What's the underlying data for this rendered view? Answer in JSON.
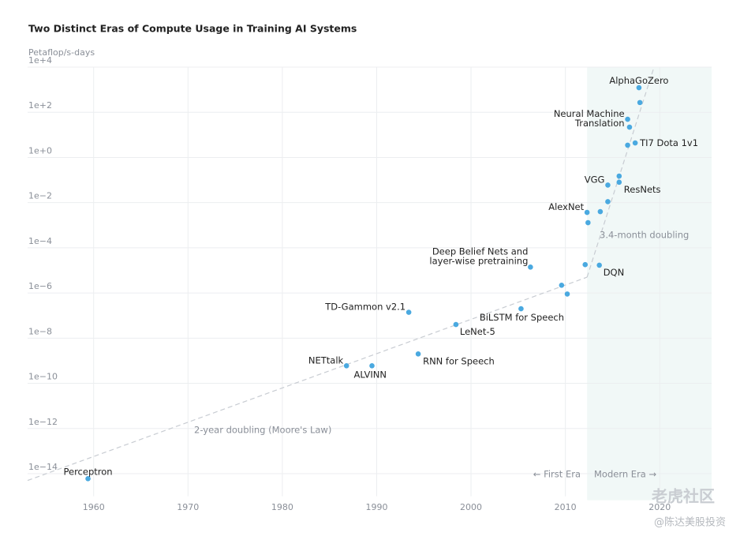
{
  "chart_data": {
    "type": "scatter",
    "title": "Two Distinct Eras of Compute Usage in Training AI Systems",
    "y_label": "Petaflop/s-days",
    "log_y": true,
    "grid": true,
    "xlim": [
      1953,
      2025.5
    ],
    "ylim": [
      1e-15,
      10000
    ],
    "xticks": [
      1960,
      1970,
      1980,
      1990,
      2000,
      2010,
      2020
    ],
    "yticks": [
      {
        "value": 1e-14,
        "label": "1e−14"
      },
      {
        "value": 1e-12,
        "label": "1e−12"
      },
      {
        "value": 1e-10,
        "label": "1e−10"
      },
      {
        "value": 1e-08,
        "label": "1e−8"
      },
      {
        "value": 1e-06,
        "label": "1e−6"
      },
      {
        "value": 0.0001,
        "label": "1e−4"
      },
      {
        "value": 0.01,
        "label": "1e−2"
      },
      {
        "value": 1,
        "label": "1e+0"
      },
      {
        "value": 100,
        "label": "1e+2"
      },
      {
        "value": 10000,
        "label": "1e+4"
      }
    ],
    "color": "#4aa9e0",
    "modern_era_start": 2012.3,
    "x": [
      1959.4,
      1986.8,
      1989.5,
      1993.4,
      1994.4,
      1998.4,
      2005.3,
      2006.3,
      2009.6,
      2010.2,
      2012.1,
      2013.6,
      2012.3,
      2012.4,
      2013.7,
      2014.5,
      2014.5,
      2015.7,
      2015.7,
      2016.6,
      2017.4,
      2016.6,
      2016.8,
      2017.8,
      2017.9
    ],
    "values": [
      6e-15,
      6e-10,
      6e-10,
      1.4e-07,
      2e-09,
      4e-08,
      2e-07,
      1.4e-05,
      2.2e-06,
      9e-07,
      1.8e-05,
      1.7e-05,
      0.0037,
      0.0013,
      0.004,
      0.06,
      0.011,
      0.08,
      0.15,
      3.5,
      4.4,
      49,
      22,
      1230,
      270
    ],
    "point_labels": [
      "Perceptron",
      "NETtalk",
      "ALVINN",
      "TD-Gammon v2.1",
      "RNN for Speech",
      "LeNet-5",
      "BiLSTM for Speech",
      "Deep Belief Nets and\nlayer-wise pretraining",
      null,
      null,
      null,
      "DQN",
      "AlexNet",
      null,
      null,
      "VGG",
      null,
      "ResNets",
      null,
      null,
      "TI7 Dota 1v1",
      "Neural Machine\nTranslation",
      null,
      "AlphaGoZero",
      null
    ],
    "trend_lines": [
      {
        "x": [
          1953,
          2012.3
        ],
        "values": [
          5e-15,
          5e-06
        ]
      },
      {
        "x": [
          2012.3,
          2019.4
        ],
        "values": [
          5e-06,
          10000
        ]
      }
    ],
    "annotations": [
      "2-year doubling (Moore's Law)",
      "3.4-month doubling",
      "← First Era",
      "Modern Era →"
    ],
    "watermark": [
      "老虎社区",
      "@陈达美股投资"
    ]
  }
}
